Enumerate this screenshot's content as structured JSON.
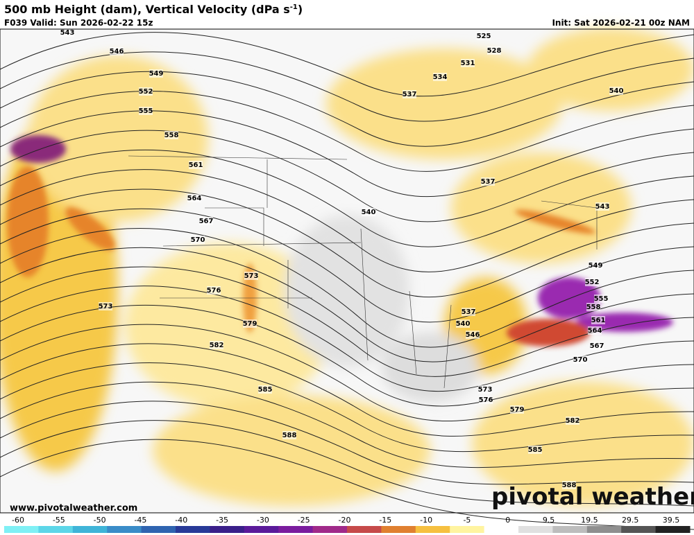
{
  "header": {
    "title": "500 mb Height (dam), Vertical Velocity (dPa s",
    "title_superscript": "-1",
    "title_close": ")",
    "valid": "F039 Valid: Sun 2026-02-22 15z",
    "init": "Init: Sat 2026-02-21 00z NAM"
  },
  "contour_labels": [
    543,
    546,
    549,
    552,
    555,
    558,
    561,
    564,
    567,
    570,
    573,
    576,
    579,
    582,
    585,
    588,
    573,
    525,
    528,
    531,
    534,
    537,
    540,
    537,
    540,
    543,
    549,
    552,
    555,
    558,
    561,
    564,
    567,
    570,
    537,
    540,
    546,
    573,
    576,
    579,
    582,
    585,
    588
  ],
  "footer": {
    "website": "www.pivotalweather.com",
    "logo": "pivotal weather"
  },
  "colorbar": {
    "ticks": [
      -60,
      -55,
      -50,
      -45,
      -40,
      -35,
      -30,
      -25,
      -20,
      -15,
      -10,
      -5,
      0,
      9.5,
      19.5,
      29.5,
      39.5
    ]
  }
}
